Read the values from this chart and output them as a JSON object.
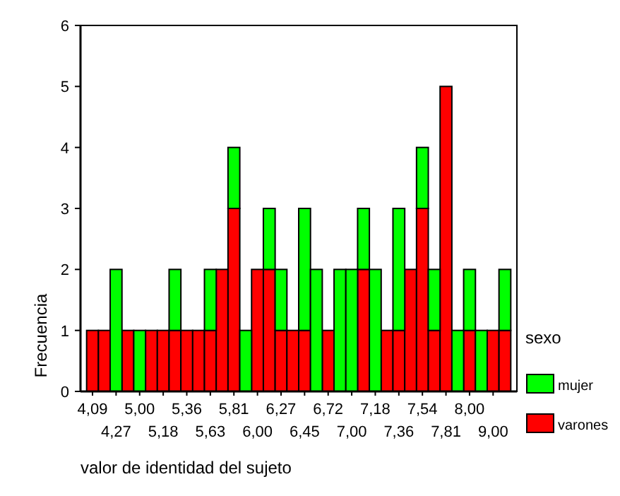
{
  "chart_data": {
    "type": "bar",
    "stacked": true,
    "xlabel": "valor de identidad del sujeto",
    "ylabel": "Frecuencia",
    "legend_title": "sexo",
    "legend": "right",
    "categories": [
      "4,09",
      null,
      "4,27",
      null,
      "5,00",
      null,
      "5,18",
      null,
      "5,36",
      null,
      "5,63",
      null,
      "5,81",
      null,
      "6,00",
      null,
      "6,27",
      null,
      "6,45",
      null,
      "6,72",
      null,
      "7,00",
      null,
      "7,18",
      null,
      "7,36",
      null,
      "7,54",
      null,
      "7,81",
      null,
      "8,00",
      null,
      "9,00",
      null
    ],
    "series": [
      {
        "name": "varones",
        "color": "#ff0000",
        "values": [
          1,
          1,
          0,
          1,
          0,
          1,
          1,
          1,
          1,
          1,
          1,
          2,
          3,
          0,
          2,
          2,
          1,
          1,
          1,
          0,
          1,
          0,
          0,
          2,
          0,
          1,
          1,
          2,
          3,
          1,
          5,
          0,
          1,
          0,
          1,
          1
        ]
      },
      {
        "name": "mujer",
        "color": "#00ff00",
        "values": [
          0,
          0,
          2,
          0,
          1,
          0,
          0,
          1,
          0,
          0,
          1,
          0,
          1,
          1,
          0,
          1,
          1,
          0,
          2,
          2,
          0,
          2,
          2,
          1,
          2,
          0,
          2,
          0,
          1,
          1,
          0,
          1,
          1,
          1,
          0,
          1
        ]
      }
    ],
    "ylim": [
      0,
      6
    ],
    "yticks": [
      0,
      1,
      2,
      3,
      4,
      5,
      6
    ],
    "grid": false
  }
}
